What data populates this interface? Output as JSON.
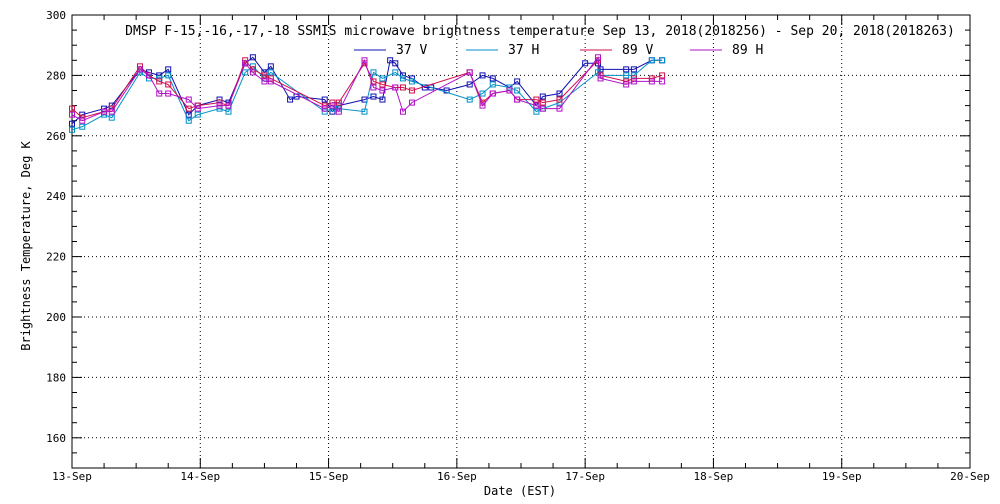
{
  "chart_data": {
    "type": "line",
    "title": "DMSP F-15,-16,-17,-18 SSMIS microwave brightness temperature Sep 13, 2018(2018256) - Sep 20, 2018(2018263)",
    "xlabel": "Date (EST)",
    "ylabel": "Brightness Temperature, Deg K",
    "xlim": [
      0,
      7
    ],
    "ylim": [
      150,
      300
    ],
    "x_tick_values": [
      0,
      1,
      2,
      3,
      4,
      5,
      6,
      7
    ],
    "x_tick_labels": [
      "13-Sep",
      "14-Sep",
      "15-Sep",
      "16-Sep",
      "17-Sep",
      "18-Sep",
      "19-Sep",
      "20-Sep"
    ],
    "y_tick_labels": [
      "160",
      "180",
      "200",
      "220",
      "240",
      "260",
      "280",
      "300"
    ],
    "y_tick_values": [
      160,
      180,
      200,
      220,
      240,
      260,
      280,
      300
    ],
    "grid": true,
    "legend_position": "top",
    "series": [
      {
        "name": "37 V",
        "color": "#1010b0",
        "x": [
          0.0,
          0.08,
          0.25,
          0.31,
          0.53,
          0.6,
          0.68,
          0.75,
          0.91,
          0.98,
          1.15,
          1.22,
          1.35,
          1.41,
          1.5,
          1.55,
          1.7,
          1.75,
          1.97,
          2.03,
          2.08,
          2.28,
          2.35,
          2.42,
          2.48,
          2.52,
          2.58,
          2.65,
          2.75,
          2.8,
          2.92,
          3.1,
          3.2,
          3.28,
          3.41,
          3.47,
          3.62,
          3.67,
          3.8,
          4.0,
          4.1,
          4.12,
          4.32,
          4.38,
          4.52,
          4.6
        ],
        "y": [
          264,
          267,
          269,
          270,
          282,
          281,
          280,
          282,
          267,
          270,
          272,
          271,
          284,
          286,
          281,
          283,
          272,
          273,
          272,
          268,
          270,
          272,
          273,
          272,
          285,
          284,
          280,
          279,
          276,
          276,
          275,
          277,
          280,
          279,
          276,
          278,
          270,
          273,
          274,
          284,
          284,
          282,
          282,
          282,
          285,
          285
        ]
      },
      {
        "name": "37 H",
        "color": "#0090c8",
        "x": [
          0.0,
          0.08,
          0.25,
          0.31,
          0.53,
          0.6,
          0.68,
          0.75,
          0.91,
          0.98,
          1.15,
          1.22,
          1.35,
          1.41,
          1.5,
          1.55,
          1.97,
          2.03,
          2.08,
          2.28,
          2.35,
          2.42,
          2.52,
          2.58,
          2.65,
          3.1,
          3.2,
          3.28,
          3.41,
          3.47,
          3.62,
          3.67,
          3.8,
          4.1,
          4.12,
          4.32,
          4.38,
          4.52,
          4.6
        ],
        "y": [
          262,
          263,
          267,
          266,
          281,
          279,
          279,
          280,
          265,
          267,
          269,
          268,
          281,
          283,
          279,
          281,
          268,
          269,
          269,
          268,
          281,
          279,
          281,
          279,
          278,
          272,
          274,
          277,
          276,
          275,
          268,
          269,
          271,
          281,
          280,
          280,
          280,
          285,
          285
        ]
      },
      {
        "name": "89 V",
        "color": "#d0104a",
        "x": [
          0.0,
          0.08,
          0.25,
          0.31,
          0.53,
          0.6,
          0.68,
          0.75,
          0.91,
          0.98,
          1.15,
          1.22,
          1.35,
          1.41,
          1.5,
          1.55,
          1.97,
          2.03,
          2.08,
          2.28,
          2.35,
          2.42,
          2.52,
          2.58,
          2.65,
          3.1,
          3.2,
          3.28,
          3.41,
          3.47,
          3.62,
          3.67,
          3.8,
          4.1,
          4.12,
          4.32,
          4.38,
          4.52,
          4.6
        ],
        "y": [
          269,
          266,
          268,
          269,
          283,
          280,
          278,
          277,
          269,
          270,
          271,
          270,
          285,
          282,
          280,
          279,
          270,
          271,
          271,
          284,
          278,
          277,
          276,
          276,
          275,
          281,
          271,
          274,
          275,
          272,
          272,
          271,
          272,
          285,
          280,
          278,
          279,
          279,
          280
        ]
      },
      {
        "name": "89 H",
        "color": "#b010c8",
        "x": [
          0.0,
          0.08,
          0.25,
          0.31,
          0.53,
          0.6,
          0.68,
          0.75,
          0.91,
          0.98,
          1.15,
          1.22,
          1.35,
          1.41,
          1.5,
          1.55,
          1.97,
          2.03,
          2.08,
          2.28,
          2.35,
          2.42,
          2.52,
          2.58,
          2.65,
          3.1,
          3.2,
          3.28,
          3.41,
          3.47,
          3.62,
          3.67,
          3.8,
          4.1,
          4.12,
          4.32,
          4.38,
          4.52,
          4.6
        ],
        "y": [
          267,
          265,
          268,
          268,
          282,
          280,
          274,
          274,
          272,
          269,
          270,
          270,
          284,
          281,
          278,
          278,
          269,
          270,
          268,
          285,
          276,
          275,
          276,
          268,
          271,
          281,
          270,
          274,
          275,
          272,
          270,
          269,
          269,
          286,
          279,
          277,
          278,
          278,
          278
        ]
      }
    ]
  }
}
